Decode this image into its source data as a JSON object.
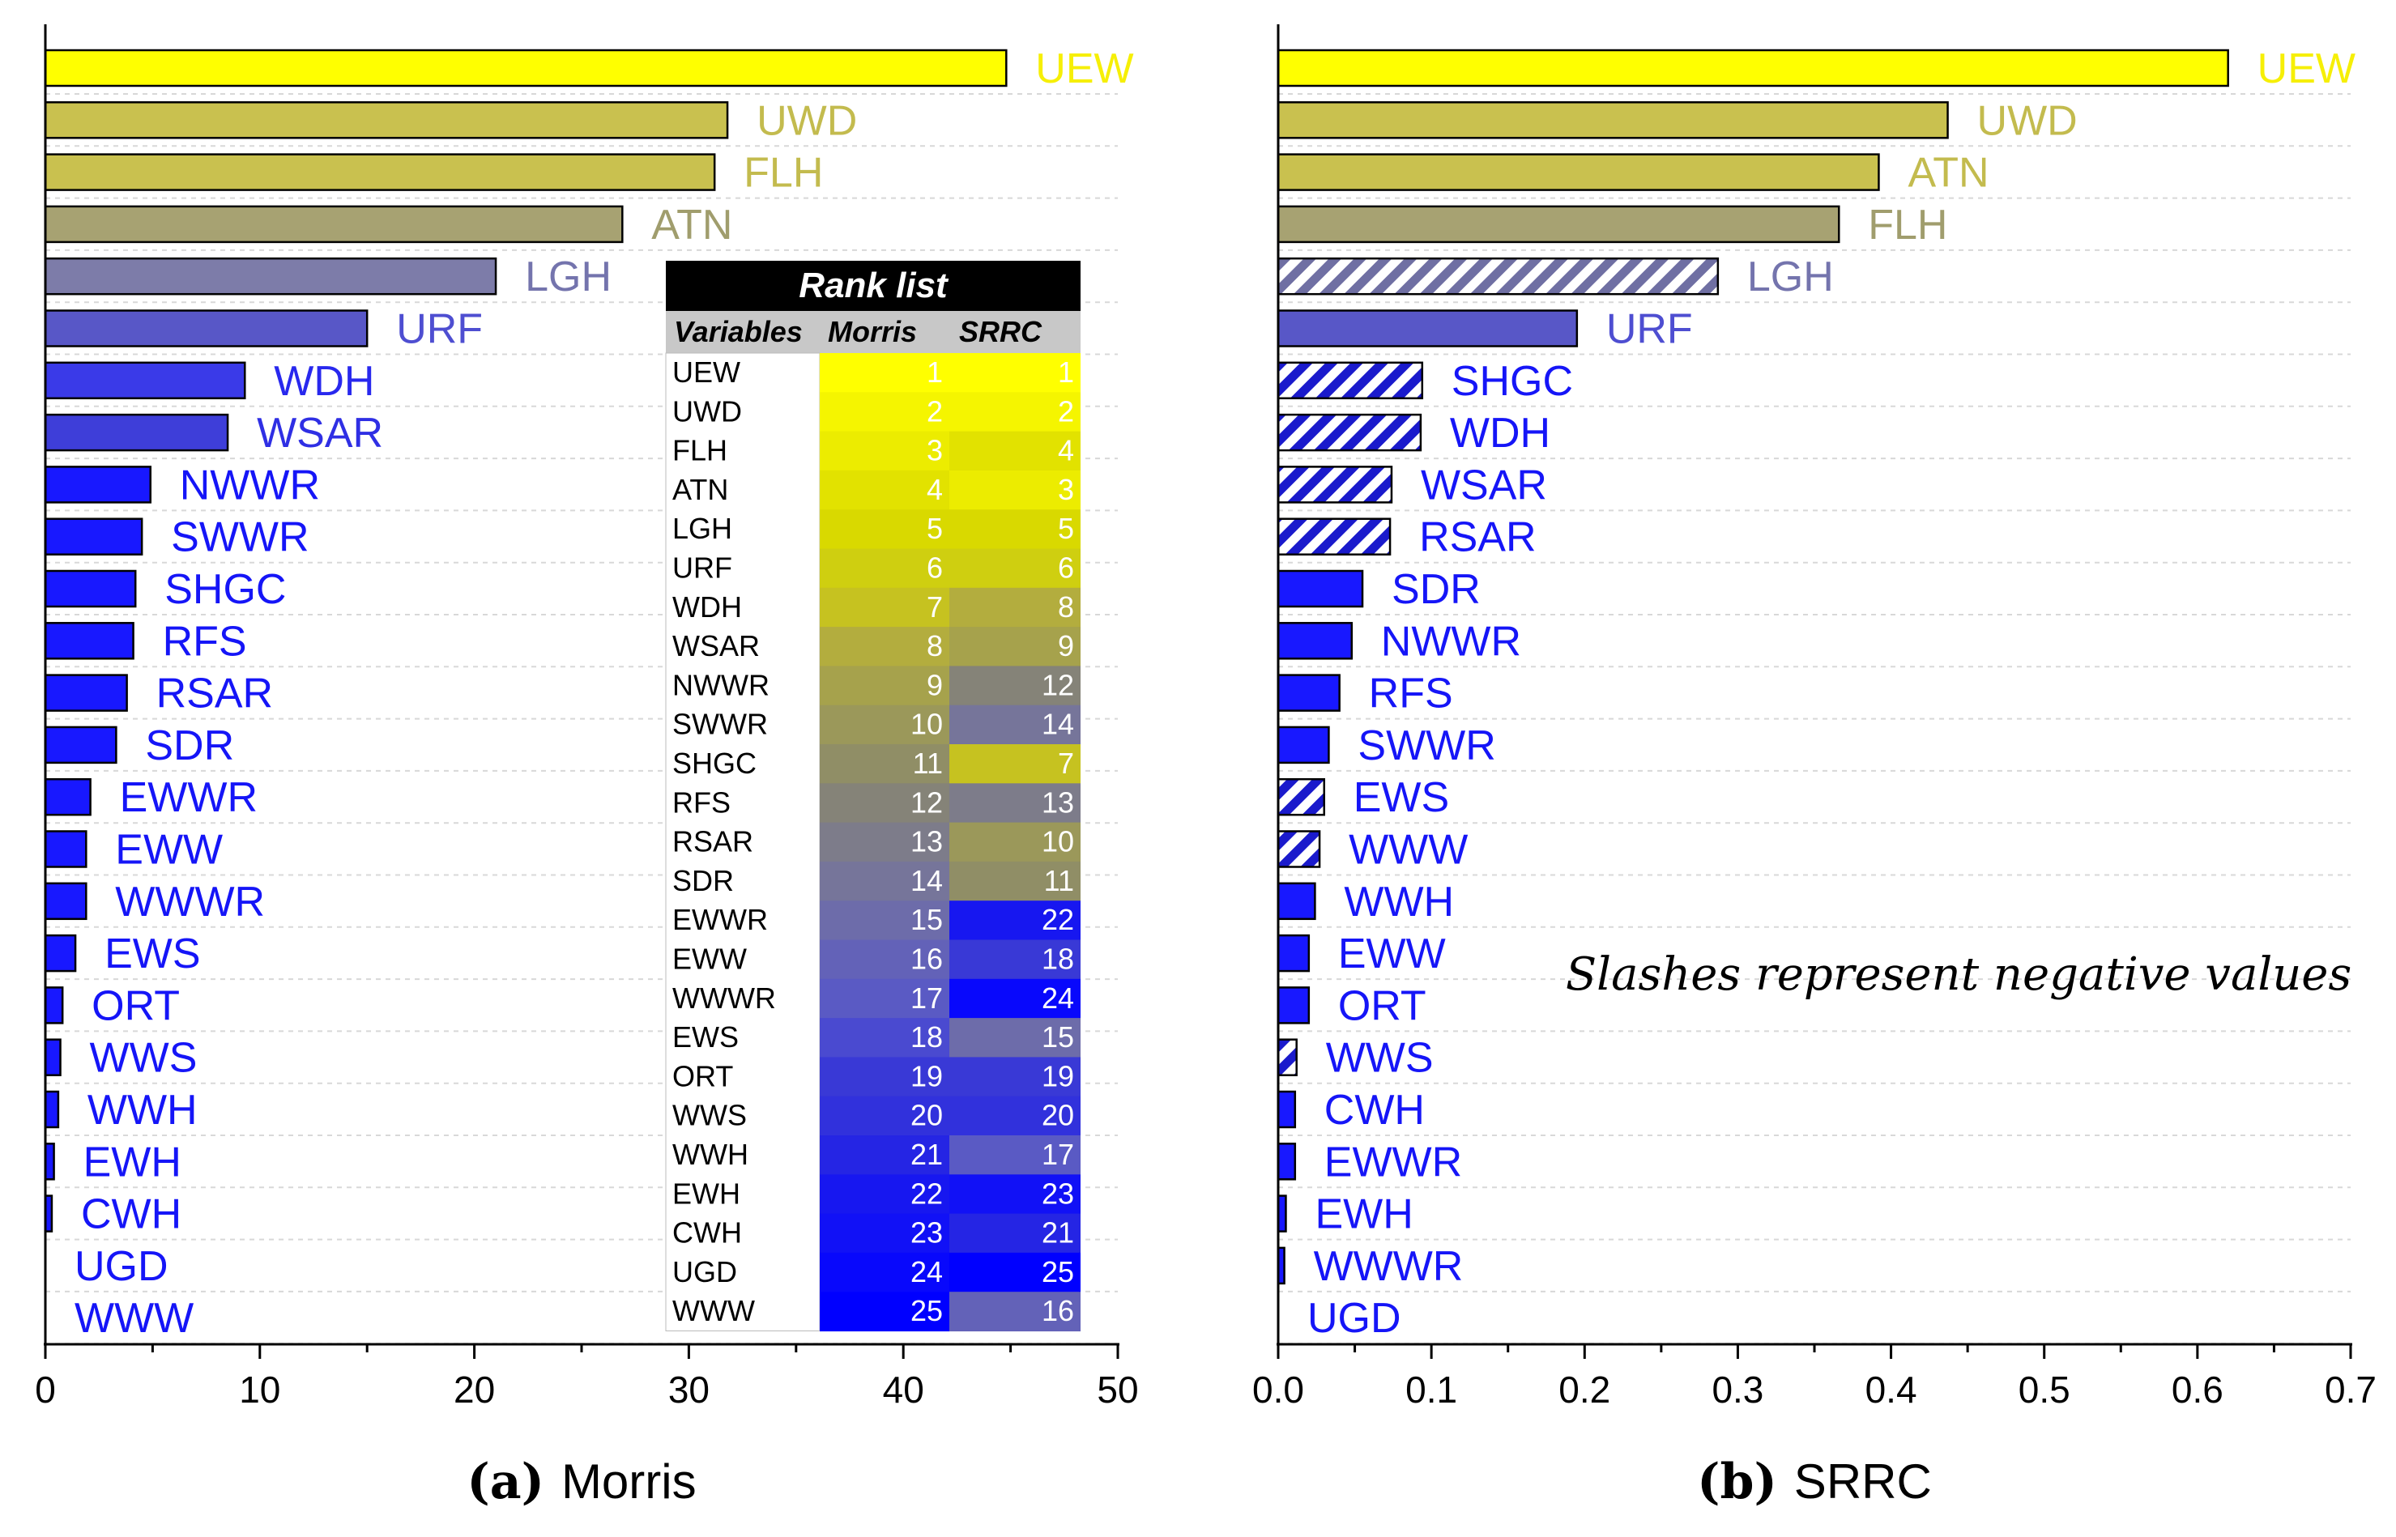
{
  "chart_data": [
    {
      "type": "bar",
      "orientation": "horizontal",
      "panel_letter": "(a)",
      "panel_name": "Morris",
      "xlim": [
        0,
        50
      ],
      "xticks": [
        "0",
        "10",
        "20",
        "30",
        "40",
        "50"
      ],
      "grid": "horizontal dashed",
      "categories": [
        "UEW",
        "UWD",
        "FLH",
        "ATN",
        "LGH",
        "URF",
        "WDH",
        "WSAR",
        "NWWR",
        "SWWR",
        "SHGC",
        "RFS",
        "RSAR",
        "SDR",
        "EWWR",
        "EWW",
        "WWWR",
        "EWS",
        "ORT",
        "WWS",
        "WWH",
        "EWH",
        "CWH",
        "UGD",
        "WWW"
      ],
      "values": [
        44.8,
        31.8,
        31.2,
        26.9,
        21.0,
        15.0,
        9.3,
        8.5,
        4.9,
        4.5,
        4.2,
        4.1,
        3.8,
        3.3,
        2.1,
        1.9,
        1.9,
        1.4,
        0.8,
        0.7,
        0.6,
        0.4,
        0.3,
        0.0,
        0.0
      ],
      "negative": [
        false,
        false,
        false,
        false,
        false,
        false,
        false,
        false,
        false,
        false,
        false,
        false,
        false,
        false,
        false,
        false,
        false,
        false,
        false,
        false,
        false,
        false,
        false,
        false,
        false
      ],
      "colors": [
        "#ffff00",
        "#c9c14f",
        "#c9c14f",
        "#a7a272",
        "#7d7ca9",
        "#5857c7",
        "#3a3ae8",
        "#3e3ed9",
        "#1818ff",
        "#1818ff",
        "#1818ff",
        "#1818ff",
        "#1818ff",
        "#1818ff",
        "#1818ff",
        "#1818ff",
        "#1818ff",
        "#1818ff",
        "#1818ff",
        "#1818ff",
        "#1818ff",
        "#1818ff",
        "#1818ff",
        "#1818ff",
        "#1818ff"
      ],
      "label_colors": [
        "#f6ef06",
        "#c3bb4e",
        "#c3bb4e",
        "#a09d6d",
        "#7474ad",
        "#4e4ed1",
        "#2828ee",
        "#2f2fe4",
        "#1515f7",
        "#1515f7",
        "#1515f7",
        "#1515f7",
        "#1515f7",
        "#1515f7",
        "#1515f7",
        "#1515f7",
        "#1515f7",
        "#1515f7",
        "#1515f7",
        "#1515f7",
        "#1515f7",
        "#1515f7",
        "#1515f7",
        "#1515f7",
        "#1515f7"
      ]
    },
    {
      "type": "bar",
      "orientation": "horizontal",
      "panel_letter": "(b)",
      "panel_name": "SRRC",
      "xlim": [
        0,
        0.7
      ],
      "xticks": [
        "0.0",
        "0.1",
        "0.2",
        "0.3",
        "0.4",
        "0.5",
        "0.6",
        "0.7"
      ],
      "grid": "horizontal dashed",
      "annotation": "Slashes represent negative values",
      "categories": [
        "UEW",
        "UWD",
        "ATN",
        "FLH",
        "LGH",
        "URF",
        "SHGC",
        "WDH",
        "WSAR",
        "RSAR",
        "SDR",
        "NWWR",
        "RFS",
        "SWWR",
        "EWS",
        "WWW",
        "WWH",
        "EWW",
        "ORT",
        "WWS",
        "CWH",
        "EWWR",
        "EWH",
        "WWWR",
        "UGD"
      ],
      "values": [
        0.62,
        0.437,
        0.392,
        0.366,
        0.287,
        0.195,
        0.094,
        0.093,
        0.074,
        0.073,
        0.055,
        0.048,
        0.04,
        0.033,
        0.03,
        0.027,
        0.024,
        0.02,
        0.02,
        0.012,
        0.011,
        0.011,
        0.005,
        0.004,
        0.0
      ],
      "negative": [
        false,
        false,
        false,
        false,
        true,
        false,
        true,
        true,
        true,
        true,
        false,
        false,
        false,
        false,
        true,
        true,
        false,
        false,
        false,
        true,
        false,
        false,
        false,
        false,
        false
      ],
      "colors": [
        "#ffff00",
        "#c9c14f",
        "#c9c14f",
        "#a7a272",
        "#7d7ca9",
        "#5857c7",
        "#1818ff",
        "#1818ff",
        "#1818ff",
        "#1818ff",
        "#1818ff",
        "#1818ff",
        "#1818ff",
        "#1818ff",
        "#1818ff",
        "#1818ff",
        "#1818ff",
        "#1818ff",
        "#1818ff",
        "#1818ff",
        "#1818ff",
        "#1818ff",
        "#1818ff",
        "#1818ff",
        "#1818ff"
      ],
      "label_colors": [
        "#f6ef06",
        "#c3bb4e",
        "#c3bb4e",
        "#a09d6d",
        "#7474ad",
        "#4e4ed1",
        "#1515f7",
        "#1515f7",
        "#1515f7",
        "#1515f7",
        "#1515f7",
        "#1515f7",
        "#1515f7",
        "#1515f7",
        "#1515f7",
        "#1515f7",
        "#1515f7",
        "#1515f7",
        "#1515f7",
        "#1515f7",
        "#1515f7",
        "#1515f7",
        "#1515f7",
        "#1515f7",
        "#1515f7"
      ]
    },
    {
      "type": "table",
      "title": "Rank list",
      "columns": [
        "Variables",
        "Morris",
        "SRRC"
      ],
      "rows": [
        {
          "variable": "UEW",
          "morris": "1",
          "srrc": "1",
          "morris_color": "#ffff00",
          "srrc_color": "#ffff00"
        },
        {
          "variable": "UWD",
          "morris": "2",
          "srrc": "2",
          "morris_color": "#f5f500",
          "srrc_color": "#f5f500"
        },
        {
          "variable": "FLH",
          "morris": "3",
          "srrc": "4",
          "morris_color": "#ecec00",
          "srrc_color": "#e2e200"
        },
        {
          "variable": "ATN",
          "morris": "4",
          "srrc": "3",
          "morris_color": "#e2e200",
          "srrc_color": "#ecec00"
        },
        {
          "variable": "LGH",
          "morris": "5",
          "srrc": "5",
          "morris_color": "#d9d900",
          "srrc_color": "#d9d900"
        },
        {
          "variable": "URF",
          "morris": "6",
          "srrc": "6",
          "morris_color": "#cfcf10",
          "srrc_color": "#cfcf10"
        },
        {
          "variable": "WDH",
          "morris": "7",
          "srrc": "8",
          "morris_color": "#c6c220",
          "srrc_color": "#b3ad3e"
        },
        {
          "variable": "WSAR",
          "morris": "8",
          "srrc": "9",
          "morris_color": "#b3ad3e",
          "srrc_color": "#a6a24c"
        },
        {
          "variable": "NWWR",
          "morris": "9",
          "srrc": "12",
          "morris_color": "#a6a24c",
          "srrc_color": "#858378"
        },
        {
          "variable": "SWWR",
          "morris": "10",
          "srrc": "14",
          "morris_color": "#9b985a",
          "srrc_color": "#76759a"
        },
        {
          "variable": "SHGC",
          "morris": "11",
          "srrc": "7",
          "morris_color": "#908e66",
          "srrc_color": "#c6c220"
        },
        {
          "variable": "RFS",
          "morris": "12",
          "srrc": "13",
          "morris_color": "#858378",
          "srrc_color": "#7d7c8a"
        },
        {
          "variable": "RSAR",
          "morris": "13",
          "srrc": "10",
          "morris_color": "#7d7c8a",
          "srrc_color": "#9b985a"
        },
        {
          "variable": "SDR",
          "morris": "14",
          "srrc": "11",
          "morris_color": "#76759a",
          "srrc_color": "#908e66"
        },
        {
          "variable": "EWWR",
          "morris": "15",
          "srrc": "22",
          "morris_color": "#6d6caa",
          "srrc_color": "#1717f0"
        },
        {
          "variable": "EWW",
          "morris": "16",
          "srrc": "18",
          "morris_color": "#6362b8",
          "srrc_color": "#3939d6"
        },
        {
          "variable": "WWWR",
          "morris": "17",
          "srrc": "24",
          "morris_color": "#5a5ac4",
          "srrc_color": "#0808fc"
        },
        {
          "variable": "EWS",
          "morris": "18",
          "srrc": "15",
          "morris_color": "#4a4ad0",
          "srrc_color": "#6d6caa"
        },
        {
          "variable": "ORT",
          "morris": "19",
          "srrc": "19",
          "morris_color": "#3939d6",
          "srrc_color": "#3939d6"
        },
        {
          "variable": "WWS",
          "morris": "20",
          "srrc": "20",
          "morris_color": "#3131dc",
          "srrc_color": "#3131dc"
        },
        {
          "variable": "WWH",
          "morris": "21",
          "srrc": "17",
          "morris_color": "#2525e4",
          "srrc_color": "#5a5ac4"
        },
        {
          "variable": "EWH",
          "morris": "22",
          "srrc": "23",
          "morris_color": "#1717f0",
          "srrc_color": "#1111f6"
        },
        {
          "variable": "CWH",
          "morris": "23",
          "srrc": "21",
          "morris_color": "#1111f6",
          "srrc_color": "#2525e4"
        },
        {
          "variable": "UGD",
          "morris": "24",
          "srrc": "25",
          "morris_color": "#0808fc",
          "srrc_color": "#0000ff"
        },
        {
          "variable": "WWW",
          "morris": "25",
          "srrc": "16",
          "morris_color": "#0000ff",
          "srrc_color": "#6362b8"
        }
      ]
    }
  ]
}
